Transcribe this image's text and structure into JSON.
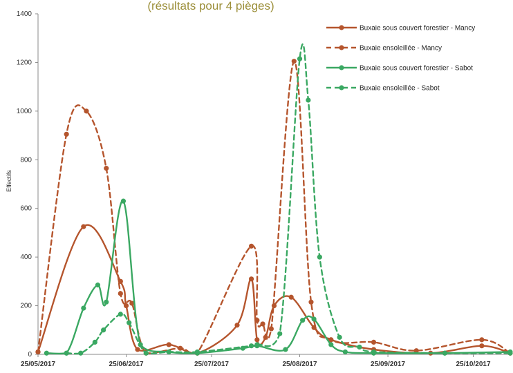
{
  "chart_data": {
    "type": "line",
    "title": "(résultats pour 4 pièges)",
    "ylabel": "Effectifs",
    "xlabel": "",
    "ylim": [
      0,
      1400
    ],
    "yticks": [
      0,
      200,
      400,
      600,
      800,
      1000,
      1200,
      1400
    ],
    "xlim": [
      "2017-05-25",
      "2017-11-07"
    ],
    "xticks": [
      "25/05/2017",
      "25/06/2017",
      "25/07/2017",
      "25/08/2017",
      "25/09/2017",
      "25/10/2017"
    ],
    "xtick_dates": [
      "2017-05-25",
      "2017-06-25",
      "2017-07-25",
      "2017-08-25",
      "2017-09-25",
      "2017-10-25"
    ],
    "grid": false,
    "legend_position": "top-right",
    "series": [
      {
        "name": "Buxaie sous couvert forestier - Mancy",
        "color": "#b5552d",
        "dash": "solid",
        "points": [
          [
            "2017-05-25",
            10
          ],
          [
            "2017-06-10",
            525
          ],
          [
            "2017-06-23",
            300
          ],
          [
            "2017-06-25",
            200
          ],
          [
            "2017-06-29",
            20
          ],
          [
            "2017-07-10",
            40
          ],
          [
            "2017-07-20",
            5
          ],
          [
            "2017-08-03",
            120
          ],
          [
            "2017-08-08",
            310
          ],
          [
            "2017-08-10",
            60
          ],
          [
            "2017-08-13",
            70
          ],
          [
            "2017-08-16",
            200
          ],
          [
            "2017-08-22",
            235
          ],
          [
            "2017-08-30",
            110
          ],
          [
            "2017-09-05",
            60
          ],
          [
            "2017-09-20",
            20
          ],
          [
            "2017-10-10",
            5
          ],
          [
            "2017-10-28",
            35
          ],
          [
            "2017-11-07",
            5
          ]
        ]
      },
      {
        "name": "Buxaie ensoleillée - Mancy",
        "color": "#b5552d",
        "dash": "dashed",
        "points": [
          [
            "2017-05-25",
            10
          ],
          [
            "2017-06-04",
            905
          ],
          [
            "2017-06-11",
            1000
          ],
          [
            "2017-06-18",
            765
          ],
          [
            "2017-06-23",
            250
          ],
          [
            "2017-06-27",
            210
          ],
          [
            "2017-07-02",
            5
          ],
          [
            "2017-07-14",
            25
          ],
          [
            "2017-07-20",
            5
          ],
          [
            "2017-08-08",
            445
          ],
          [
            "2017-08-10",
            140
          ],
          [
            "2017-08-12",
            125
          ],
          [
            "2017-08-15",
            105
          ],
          [
            "2017-08-23",
            1205
          ],
          [
            "2017-08-29",
            215
          ],
          [
            "2017-09-05",
            60
          ],
          [
            "2017-09-20",
            50
          ],
          [
            "2017-10-05",
            15
          ],
          [
            "2017-10-28",
            60
          ],
          [
            "2017-11-07",
            5
          ]
        ]
      },
      {
        "name": "Buxaie sous couvert forestier - Sabot",
        "color": "#3aa862",
        "dash": "solid",
        "points": [
          [
            "2017-05-28",
            5
          ],
          [
            "2017-06-04",
            5
          ],
          [
            "2017-06-10",
            190
          ],
          [
            "2017-06-15",
            285
          ],
          [
            "2017-06-18",
            215
          ],
          [
            "2017-06-24",
            630
          ],
          [
            "2017-06-30",
            40
          ],
          [
            "2017-07-10",
            10
          ],
          [
            "2017-07-20",
            5
          ],
          [
            "2017-08-05",
            25
          ],
          [
            "2017-08-10",
            35
          ],
          [
            "2017-08-20",
            20
          ],
          [
            "2017-08-26",
            140
          ],
          [
            "2017-08-30",
            145
          ],
          [
            "2017-09-05",
            40
          ],
          [
            "2017-09-10",
            10
          ],
          [
            "2017-09-20",
            5
          ],
          [
            "2017-10-15",
            5
          ],
          [
            "2017-11-07",
            10
          ]
        ]
      },
      {
        "name": "Buxaie ensoleillée - Sabot",
        "color": "#3aa862",
        "dash": "dashed",
        "points": [
          [
            "2017-06-04",
            5
          ],
          [
            "2017-06-09",
            5
          ],
          [
            "2017-06-14",
            50
          ],
          [
            "2017-06-17",
            100
          ],
          [
            "2017-06-23",
            165
          ],
          [
            "2017-06-26",
            130
          ],
          [
            "2017-07-02",
            5
          ],
          [
            "2017-07-10",
            10
          ],
          [
            "2017-07-20",
            10
          ],
          [
            "2017-08-08",
            35
          ],
          [
            "2017-08-10",
            40
          ],
          [
            "2017-08-18",
            85
          ],
          [
            "2017-08-25",
            1215
          ],
          [
            "2017-08-28",
            1045
          ],
          [
            "2017-09-01",
            400
          ],
          [
            "2017-09-08",
            70
          ],
          [
            "2017-09-15",
            30
          ],
          [
            "2017-09-20",
            10
          ],
          [
            "2017-10-15",
            5
          ],
          [
            "2017-11-07",
            5
          ]
        ]
      }
    ]
  }
}
